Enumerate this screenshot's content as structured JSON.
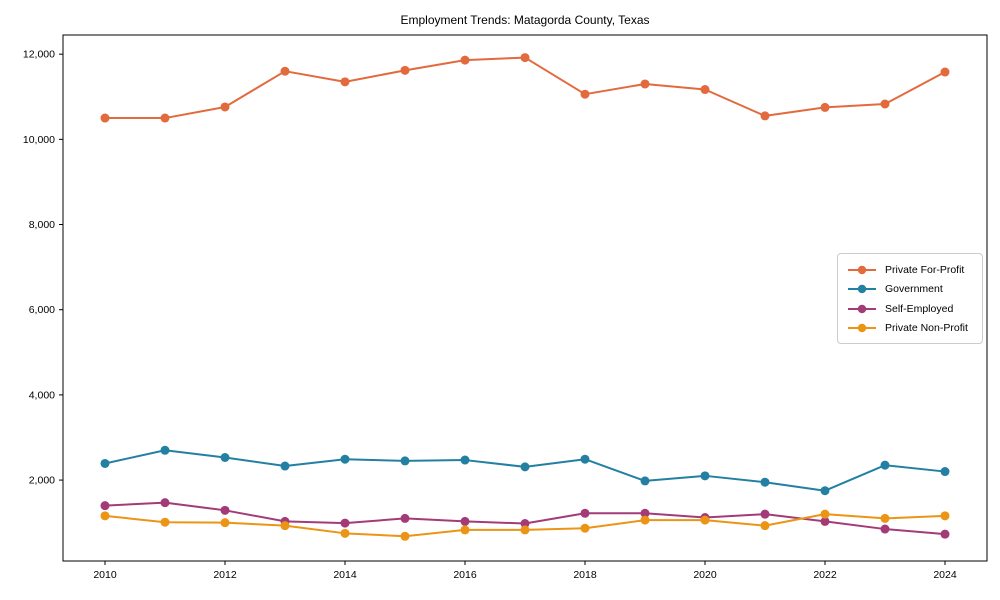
{
  "figure": {
    "title": "Employment Trends: Matagorda County, Texas"
  },
  "chart_data": {
    "type": "line",
    "title": "Employment Trends: Matagorda County, Texas",
    "xlabel": "",
    "ylabel": "",
    "grid": false,
    "legend_position": "right-center-inside",
    "marker": "circle",
    "x": [
      2010,
      2011,
      2012,
      2013,
      2014,
      2015,
      2016,
      2017,
      2018,
      2019,
      2020,
      2021,
      2022,
      2023,
      2024
    ],
    "xlim": [
      2009.3,
      2024.7
    ],
    "ylim": [
      100,
      12450
    ],
    "xticks": {
      "values": [
        2010,
        2012,
        2014,
        2016,
        2018,
        2020,
        2022,
        2024
      ],
      "labels": [
        "2010",
        "2012",
        "2014",
        "2016",
        "2018",
        "2020",
        "2022",
        "2024"
      ]
    },
    "yticks": {
      "values": [
        2000,
        4000,
        6000,
        8000,
        10000,
        12000
      ],
      "labels": [
        "2,000",
        "4,000",
        "6,000",
        "8,000",
        "10,000",
        "12,000"
      ]
    },
    "series": [
      {
        "name": "Private For-Profit",
        "color": "#E26A3D",
        "values": [
          10500,
          10500,
          10760,
          11600,
          11350,
          11620,
          11860,
          11920,
          11060,
          11300,
          11170,
          10550,
          10750,
          10830,
          11580
        ]
      },
      {
        "name": "Government",
        "color": "#2380A2",
        "values": [
          2390,
          2700,
          2530,
          2330,
          2490,
          2450,
          2470,
          2310,
          2490,
          1980,
          2100,
          1950,
          1750,
          2350,
          2200
        ]
      },
      {
        "name": "Self-Employed",
        "color": "#A33B78",
        "values": [
          1400,
          1470,
          1290,
          1030,
          990,
          1100,
          1030,
          980,
          1220,
          1220,
          1120,
          1200,
          1030,
          850,
          730
        ]
      },
      {
        "name": "Private Non-Profit",
        "color": "#EC9414",
        "values": [
          1160,
          1010,
          1000,
          930,
          750,
          680,
          830,
          830,
          870,
          1060,
          1060,
          930,
          1200,
          1100,
          1160
        ]
      }
    ]
  }
}
